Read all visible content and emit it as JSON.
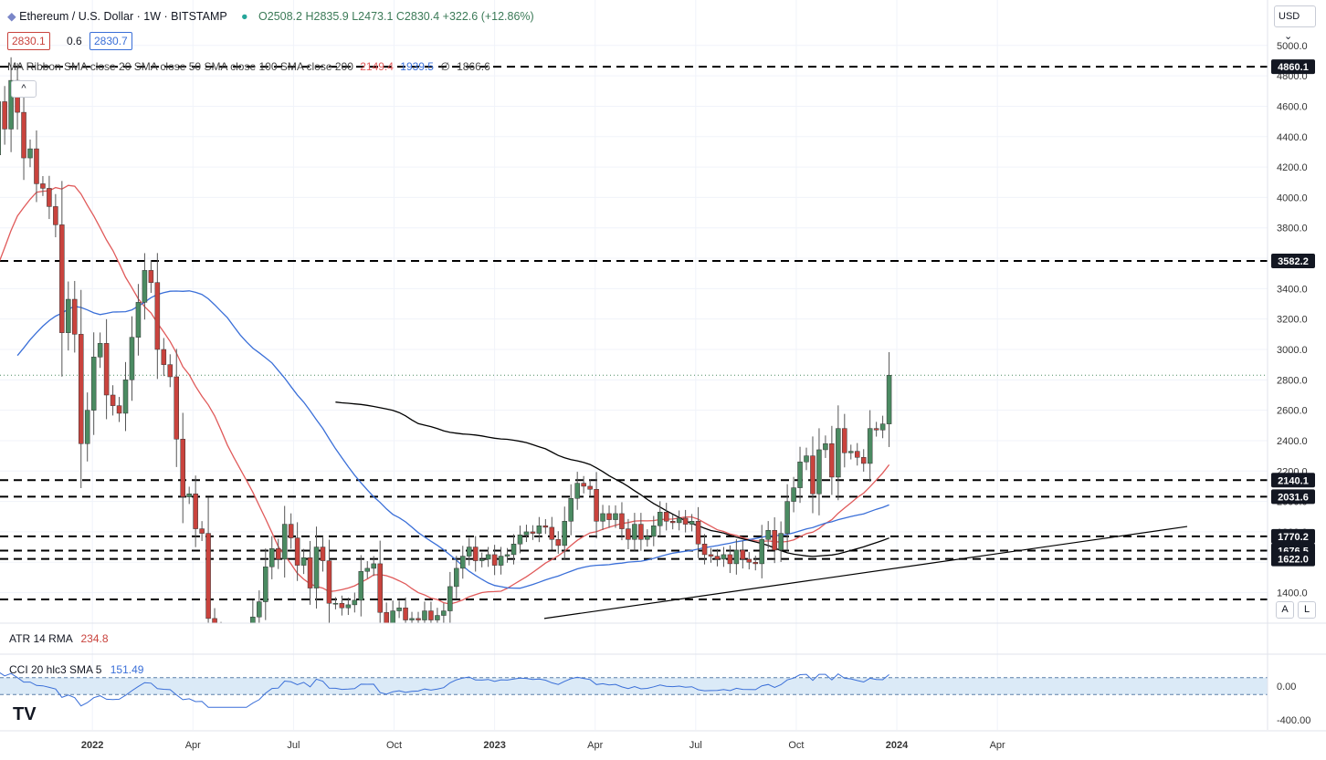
{
  "header": {
    "symbol": "Ethereum / U.S. Dollar · 1W · BITSTAMP",
    "open": "O2508.2",
    "high": "H2835.9",
    "low": "L2473.1",
    "close": "C2830.4",
    "change": "+322.6 (+12.86%)",
    "bid": "2830.1",
    "spread": "0.6",
    "ask": "2830.7",
    "ma_ribbon": "MA Ribbon SMA close 20 SMA close 50 SMA close 100 SMA close 200",
    "ma20_val": "2149.4",
    "ma50_val": "1939.5",
    "ma100_val": "∅",
    "ma200_val": "1866.6",
    "atr_label": "ATR 14 RMA",
    "atr_val": "234.8",
    "cci_label": "CCI 20 hlc3 SMA 5",
    "cci_val": "151.49",
    "currency": "USD",
    "btn_a": "A",
    "btn_l": "L",
    "collapse": "^"
  },
  "chart_data": {
    "type": "candlestick",
    "title": "Ethereum / U.S. Dollar · 1W · BITSTAMP",
    "price_ticks": [
      "5000.0",
      "4800.0",
      "4600.0",
      "4400.0",
      "4200.0",
      "4000.0",
      "3800.0",
      "3600.0",
      "3400.0",
      "3200.0",
      "3000.0",
      "2800.0",
      "2600.0",
      "2400.0",
      "2200.0",
      "2000.0",
      "1800.0",
      "1600.0",
      "1400.0"
    ],
    "price_tick_values": [
      5000,
      4800,
      4600,
      4400,
      4200,
      4000,
      3800,
      3600,
      3400,
      3200,
      3000,
      2800,
      2600,
      2400,
      2200,
      2000,
      1800,
      1600,
      1400
    ],
    "time_ticks": [
      "Apr",
      "Jul",
      "Oct",
      "2022",
      "Apr",
      "Jul",
      "Oct",
      "2023",
      "Apr",
      "Jul",
      "Oct",
      "2024",
      "Apr"
    ],
    "time_tick_weeks": [
      -28,
      -15,
      -2,
      11,
      24,
      37,
      50,
      63,
      76,
      89,
      102,
      115,
      128
    ],
    "levels": [
      {
        "label": "4860.1",
        "value": 4860.1
      },
      {
        "label": "3582.2",
        "value": 3582.2
      },
      {
        "label": "2140.1",
        "value": 2140.1
      },
      {
        "label": "2031.6",
        "value": 2031.6
      },
      {
        "label": "1770.2",
        "value": 1770.2
      },
      {
        "label": "1676.5",
        "value": 1676.5
      },
      {
        "label": "1622.0",
        "value": 1622.0
      },
      {
        "label": "",
        "value": 1355
      }
    ],
    "last_price": 2830.4,
    "cci_ticks": [
      "0.00",
      "-400.00"
    ],
    "cci_tick_values": [
      0,
      -400
    ],
    "cci_band": [
      100,
      -100
    ],
    "colors": {
      "up": "#4b8b62",
      "down": "#c9433d",
      "ma20": "#e05a5a",
      "ma50": "#3a6fd8",
      "trend": "#000000",
      "cci": "#3a6fd8",
      "band": "#dbeaf7"
    }
  }
}
